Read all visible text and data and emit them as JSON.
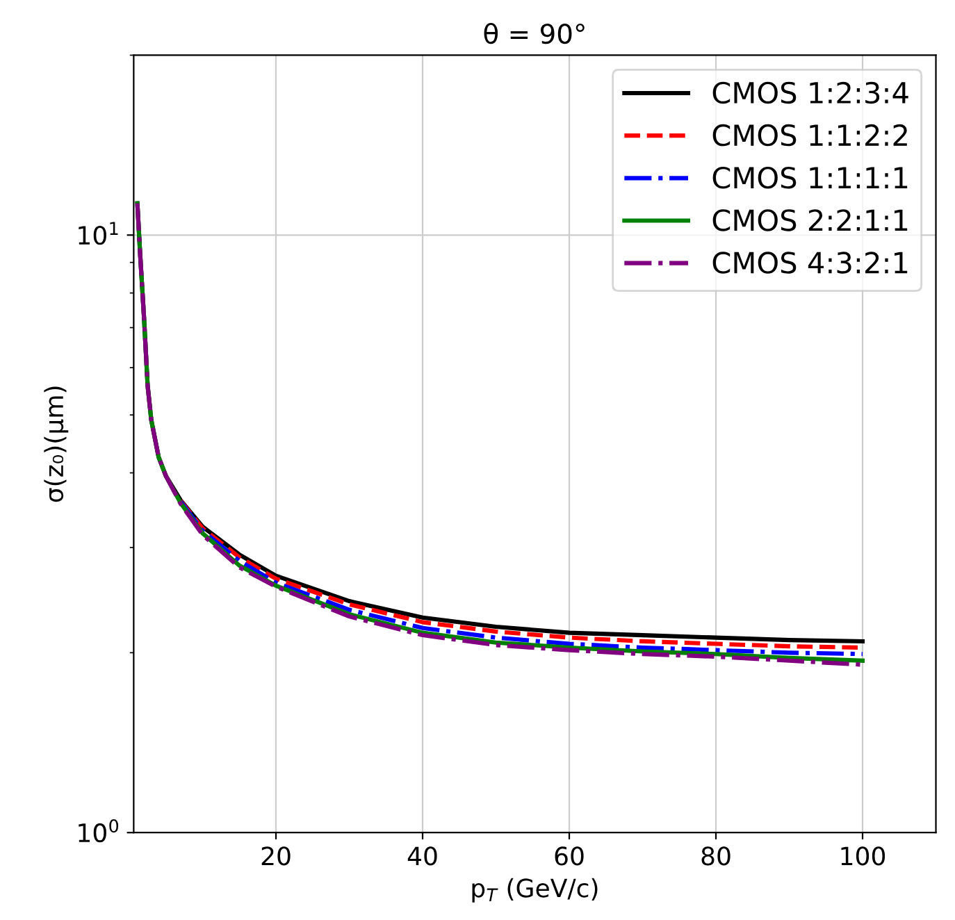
{
  "chart_data": {
    "type": "line",
    "title": "θ = 90°",
    "xlabel": "p$_{T}$ (GeV/c)",
    "ylabel": "σ(z₀)(μm)",
    "x": [
      1.1,
      1.5,
      2,
      2.5,
      3,
      4,
      5,
      7,
      10,
      15,
      20,
      30,
      40,
      50,
      60,
      70,
      80,
      90,
      100
    ],
    "series": [
      {
        "name": "CMOS 1:2:3:4",
        "color": "#000000",
        "line_style": "solid",
        "values": [
          11.3,
          9.2,
          7.3,
          5.6,
          4.9,
          4.25,
          3.95,
          3.6,
          3.25,
          2.92,
          2.69,
          2.44,
          2.29,
          2.21,
          2.16,
          2.14,
          2.12,
          2.1,
          2.09
        ]
      },
      {
        "name": "CMOS 1:1:2:2",
        "color": "#ff0000",
        "line_style": "dashed",
        "values": [
          null,
          null,
          null,
          null,
          null,
          null,
          null,
          3.59,
          3.23,
          2.89,
          2.66,
          2.41,
          2.25,
          2.17,
          2.12,
          2.09,
          2.07,
          2.05,
          2.04
        ]
      },
      {
        "name": "CMOS 1:1:1:1",
        "color": "#0000ff",
        "line_style": "dashdot",
        "values": [
          null,
          null,
          null,
          null,
          null,
          null,
          null,
          3.58,
          3.2,
          2.85,
          2.62,
          2.36,
          2.2,
          2.12,
          2.07,
          2.04,
          2.02,
          2.0,
          1.99
        ]
      },
      {
        "name": "CMOS 2:2:1:1",
        "color": "#008000",
        "line_style": "solid",
        "values": [
          11.3,
          9.2,
          7.3,
          5.6,
          4.9,
          4.25,
          3.95,
          3.56,
          3.17,
          2.8,
          2.59,
          2.32,
          2.16,
          2.08,
          2.04,
          2.01,
          1.99,
          1.96,
          1.94
        ]
      },
      {
        "name": "CMOS 4:3:2:1",
        "color": "#800080",
        "line_style": "dashdot",
        "values": [
          11.3,
          9.2,
          7.3,
          5.6,
          4.9,
          4.25,
          3.95,
          3.55,
          3.15,
          2.78,
          2.58,
          2.3,
          2.14,
          2.06,
          2.02,
          1.99,
          1.97,
          1.94,
          1.91
        ]
      }
    ],
    "log": "y",
    "xlim": [
      0.6,
      110
    ],
    "ylim": [
      1,
      20
    ],
    "xticks": [
      20,
      40,
      60,
      80,
      100
    ],
    "yticks": [
      {
        "value": 1,
        "label": "10$^{0}$"
      },
      {
        "value": 10,
        "label": "10$^{1}$"
      }
    ],
    "grid": true,
    "legend": "top right"
  }
}
